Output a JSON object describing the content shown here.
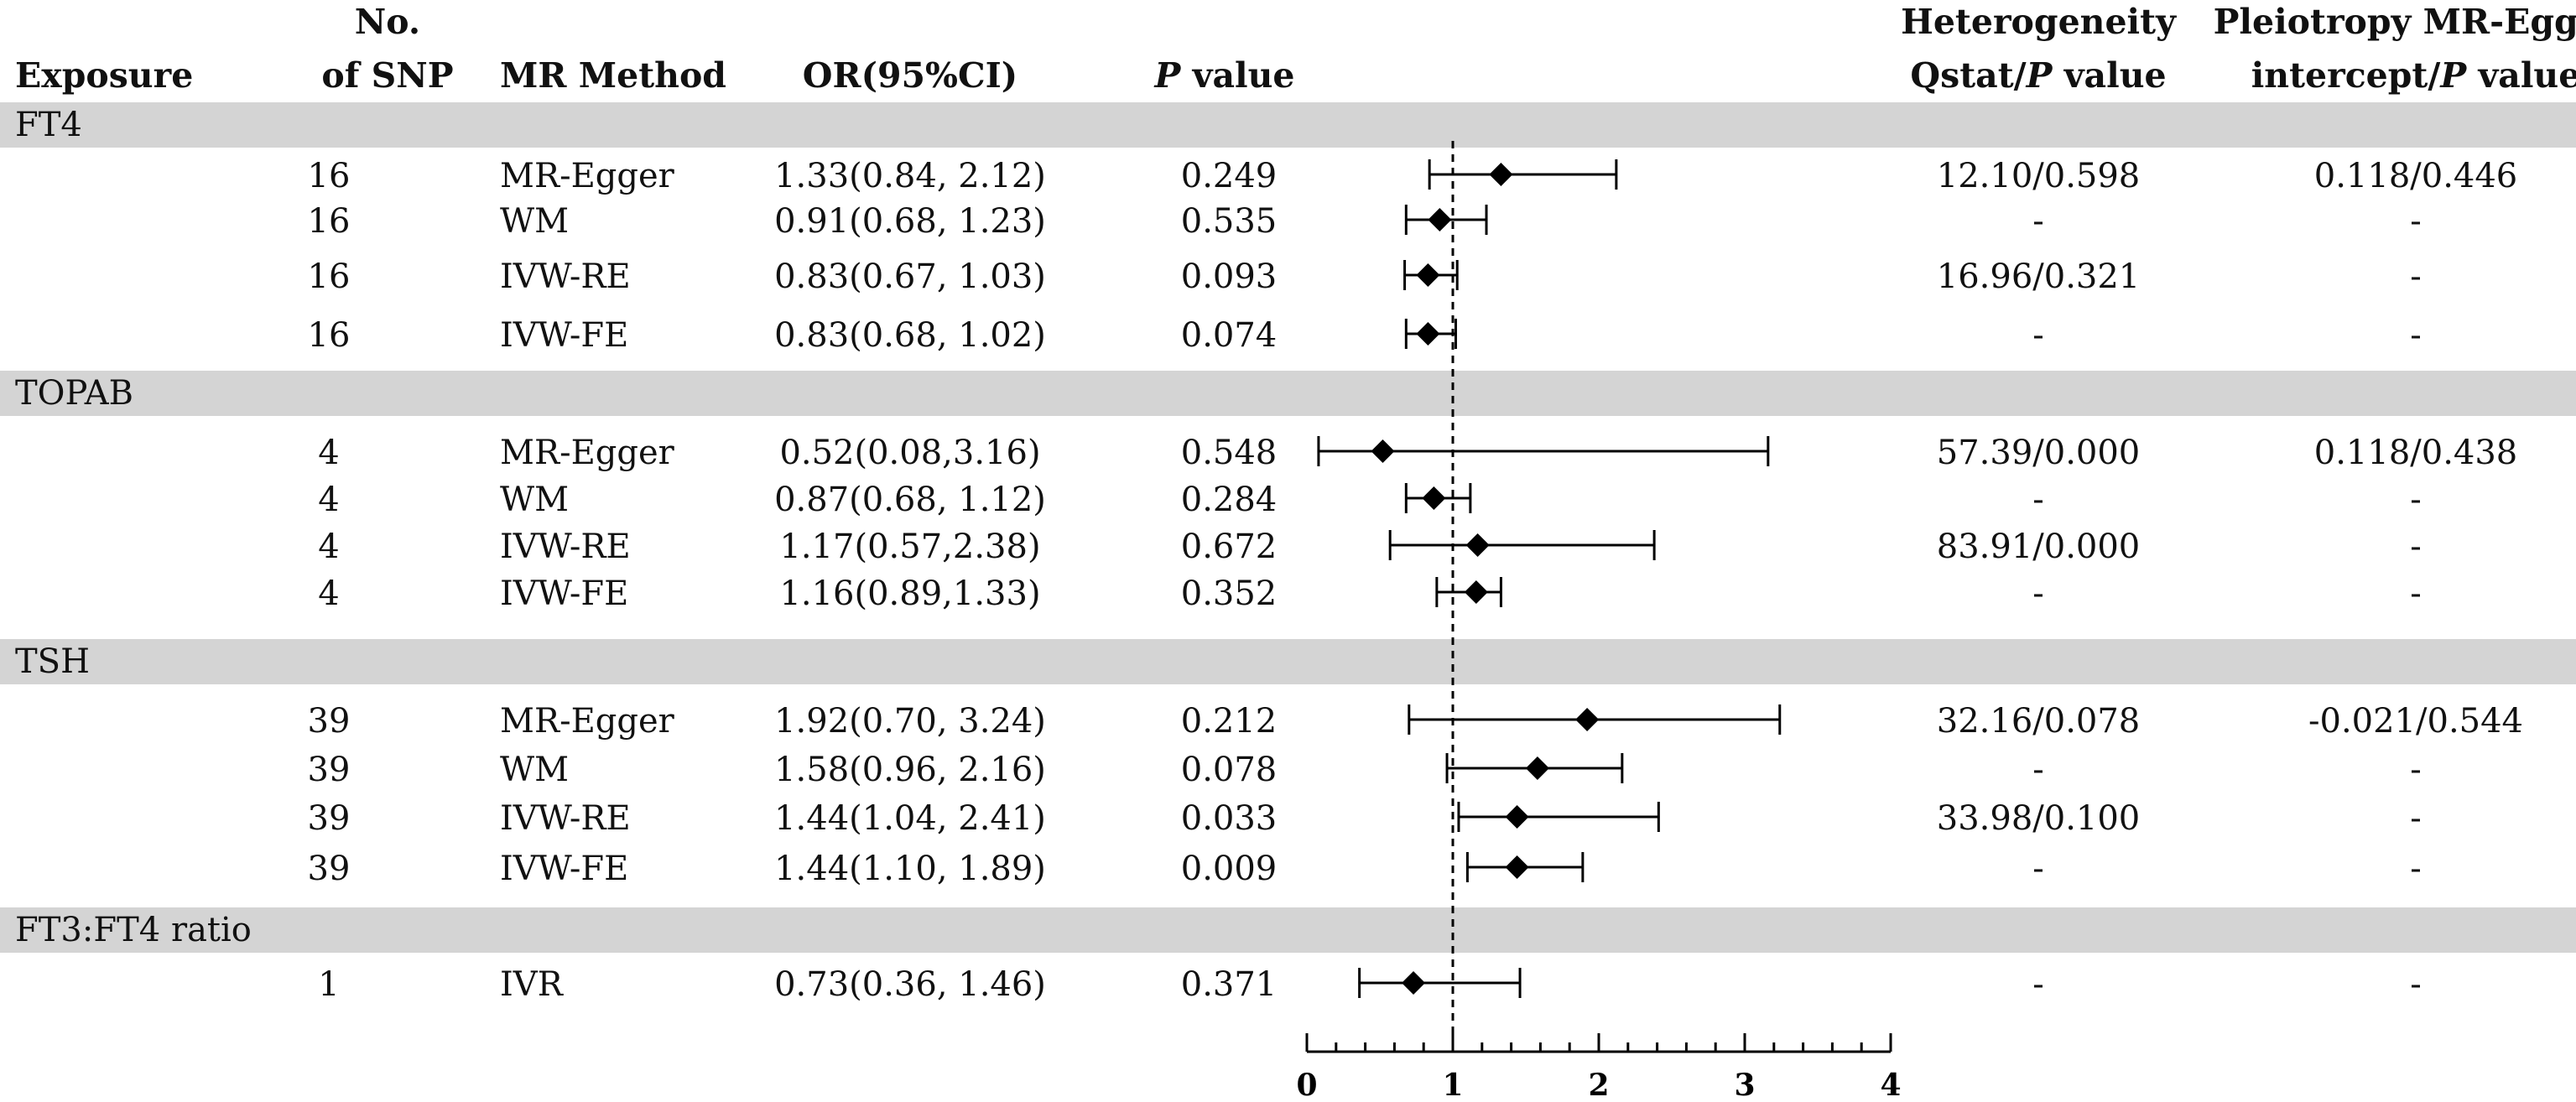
{
  "headers": {
    "exposure": "Exposure",
    "snp_line1": "No.",
    "snp_line2": "of SNP",
    "method": "MR Method",
    "or": "OR(95%CI)",
    "p_italic": "P",
    "p_rest": " value",
    "het_line1": "Heterogeneity",
    "het_line2_a": "Qstat/",
    "het_line2_p": "P",
    "het_line2_b": " value",
    "pleio_line1": "Pleiotropy MR-Egger",
    "pleio_line2_a": "intercept/",
    "pleio_line2_p": "P",
    "pleio_line2_b": " value"
  },
  "groups": [
    {
      "label": "FT4",
      "rows": [
        {
          "snp": "16",
          "method": "MR-Egger",
          "or_ci": "1.33(0.84, 2.12)",
          "p": "0.249",
          "het": "12.10/0.598",
          "pleio": "0.118/0.446"
        },
        {
          "snp": "16",
          "method": "WM",
          "or_ci": "0.91(0.68, 1.23)",
          "p": "0.535",
          "het": "-",
          "pleio": "-"
        },
        {
          "snp": "16",
          "method": "IVW-RE",
          "or_ci": "0.83(0.67, 1.03)",
          "p": "0.093",
          "het": "16.96/0.321",
          "pleio": "-"
        },
        {
          "snp": "16",
          "method": "IVW-FE",
          "or_ci": "0.83(0.68, 1.02)",
          "p": "0.074",
          "het": "-",
          "pleio": "-"
        }
      ]
    },
    {
      "label": "TOPAB",
      "rows": [
        {
          "snp": "4",
          "method": "MR-Egger",
          "or_ci": "0.52(0.08,3.16)",
          "p": "0.548",
          "het": "57.39/0.000",
          "pleio": "0.118/0.438"
        },
        {
          "snp": "4",
          "method": "WM",
          "or_ci": "0.87(0.68, 1.12)",
          "p": "0.284",
          "het": "-",
          "pleio": "-"
        },
        {
          "snp": "4",
          "method": "IVW-RE",
          "or_ci": "1.17(0.57,2.38)",
          "p": "0.672",
          "het": "83.91/0.000",
          "pleio": "-"
        },
        {
          "snp": "4",
          "method": "IVW-FE",
          "or_ci": "1.16(0.89,1.33)",
          "p": "0.352",
          "het": "-",
          "pleio": "-"
        }
      ]
    },
    {
      "label": "TSH",
      "rows": [
        {
          "snp": "39",
          "method": "MR-Egger",
          "or_ci": "1.92(0.70, 3.24)",
          "p": "0.212",
          "het": "32.16/0.078",
          "pleio": "-0.021/0.544"
        },
        {
          "snp": "39",
          "method": "WM",
          "or_ci": "1.58(0.96, 2.16)",
          "p": "0.078",
          "het": "-",
          "pleio": "-"
        },
        {
          "snp": "39",
          "method": "IVW-RE",
          "or_ci": "1.44(1.04, 2.41)",
          "p": "0.033",
          "het": "33.98/0.100",
          "pleio": "-"
        },
        {
          "snp": "39",
          "method": "IVW-FE",
          "or_ci": "1.44(1.10, 1.89)",
          "p": "0.009",
          "het": "-",
          "pleio": "-"
        }
      ]
    },
    {
      "label": "FT3:FT4 ratio",
      "rows": [
        {
          "snp": "1",
          "method": "IVR",
          "or_ci": "0.73(0.36, 1.46)",
          "p": "0.371",
          "het": "-",
          "pleio": "-"
        }
      ]
    }
  ],
  "chart_data": {
    "type": "forest",
    "xlim": [
      0,
      4
    ],
    "reference_line": 1,
    "tick_labels": [
      "0",
      "1",
      "2",
      "3",
      "4"
    ],
    "minor_ticks_per_unit": 5,
    "series": [
      {
        "group": "FT4",
        "method": "MR-Egger",
        "or": 1.33,
        "lo": 0.84,
        "hi": 2.12
      },
      {
        "group": "FT4",
        "method": "WM",
        "or": 0.91,
        "lo": 0.68,
        "hi": 1.23
      },
      {
        "group": "FT4",
        "method": "IVW-RE",
        "or": 0.83,
        "lo": 0.67,
        "hi": 1.03
      },
      {
        "group": "FT4",
        "method": "IVW-FE",
        "or": 0.83,
        "lo": 0.68,
        "hi": 1.02
      },
      {
        "group": "TOPAB",
        "method": "MR-Egger",
        "or": 0.52,
        "lo": 0.08,
        "hi": 3.16
      },
      {
        "group": "TOPAB",
        "method": "WM",
        "or": 0.87,
        "lo": 0.68,
        "hi": 1.12
      },
      {
        "group": "TOPAB",
        "method": "IVW-RE",
        "or": 1.17,
        "lo": 0.57,
        "hi": 2.38
      },
      {
        "group": "TOPAB",
        "method": "IVW-FE",
        "or": 1.16,
        "lo": 0.89,
        "hi": 1.33
      },
      {
        "group": "TSH",
        "method": "MR-Egger",
        "or": 1.92,
        "lo": 0.7,
        "hi": 3.24
      },
      {
        "group": "TSH",
        "method": "WM",
        "or": 1.58,
        "lo": 0.96,
        "hi": 2.16
      },
      {
        "group": "TSH",
        "method": "IVW-RE",
        "or": 1.44,
        "lo": 1.04,
        "hi": 2.41
      },
      {
        "group": "TSH",
        "method": "IVW-FE",
        "or": 1.44,
        "lo": 1.1,
        "hi": 1.89
      },
      {
        "group": "FT3:FT4 ratio",
        "method": "IVR",
        "or": 0.73,
        "lo": 0.36,
        "hi": 1.46
      }
    ],
    "colors": {
      "band": "#d4d4d4",
      "mark": "#000000"
    }
  }
}
